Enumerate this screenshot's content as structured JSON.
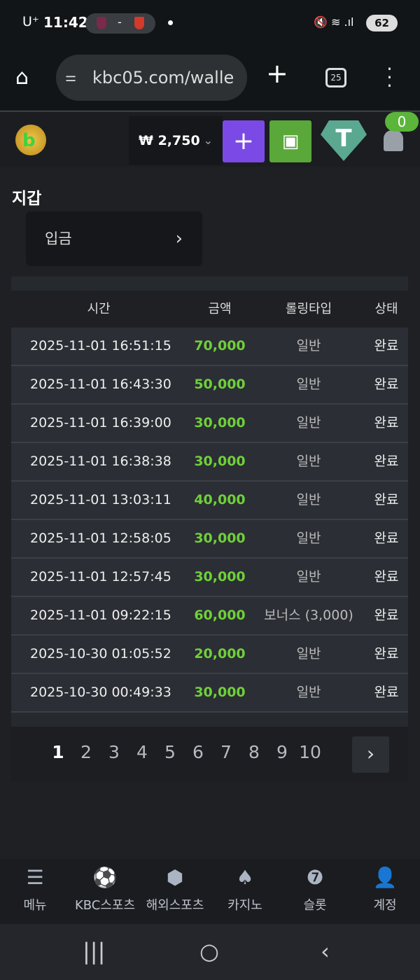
{
  "status": {
    "carrier": "U⁺",
    "time": "11:42",
    "battery": "62"
  },
  "browser": {
    "url": "kbc05.com/walle",
    "tab_count": "25"
  },
  "header": {
    "balance": "₩ 2,750",
    "notification_count": "0",
    "brand_colors": {
      "add": "#7b4ae6",
      "vault": "#5aa83a",
      "tether": "#5aa88f"
    }
  },
  "page": {
    "title": "지갑",
    "deposit_label": "입금"
  },
  "table": {
    "headers": [
      "시간",
      "금액",
      "롤링타입",
      "상태"
    ],
    "rows": [
      [
        "2025-11-01 16:51:15",
        "70,000",
        "일반",
        "완료"
      ],
      [
        "2025-11-01 16:43:30",
        "50,000",
        "일반",
        "완료"
      ],
      [
        "2025-11-01 16:39:00",
        "30,000",
        "일반",
        "완료"
      ],
      [
        "2025-11-01 16:38:38",
        "30,000",
        "일반",
        "완료"
      ],
      [
        "2025-11-01 13:03:11",
        "40,000",
        "일반",
        "완료"
      ],
      [
        "2025-11-01 12:58:05",
        "30,000",
        "일반",
        "완료"
      ],
      [
        "2025-11-01 12:57:45",
        "30,000",
        "일반",
        "완료"
      ],
      [
        "2025-11-01 09:22:15",
        "60,000",
        "보너스 (3,000)",
        "완료"
      ],
      [
        "2025-10-30 01:05:52",
        "20,000",
        "일반",
        "완료"
      ],
      [
        "2025-10-30 00:49:33",
        "30,000",
        "일반",
        "완료"
      ]
    ]
  },
  "pagination": {
    "pages": [
      "1",
      "2",
      "3",
      "4",
      "5",
      "6",
      "7",
      "8",
      "9",
      "10"
    ],
    "current": "1"
  },
  "bottom_nav": [
    {
      "label": "메뉴",
      "icon": "menu-search-icon"
    },
    {
      "label": "KBC스포츠",
      "icon": "soccer-ball-icon"
    },
    {
      "label": "해외스포츠",
      "icon": "dice-icon"
    },
    {
      "label": "카지노",
      "icon": "cards-icon"
    },
    {
      "label": "슬롯",
      "icon": "slot-icon"
    },
    {
      "label": "계정",
      "icon": "account-icon"
    }
  ]
}
